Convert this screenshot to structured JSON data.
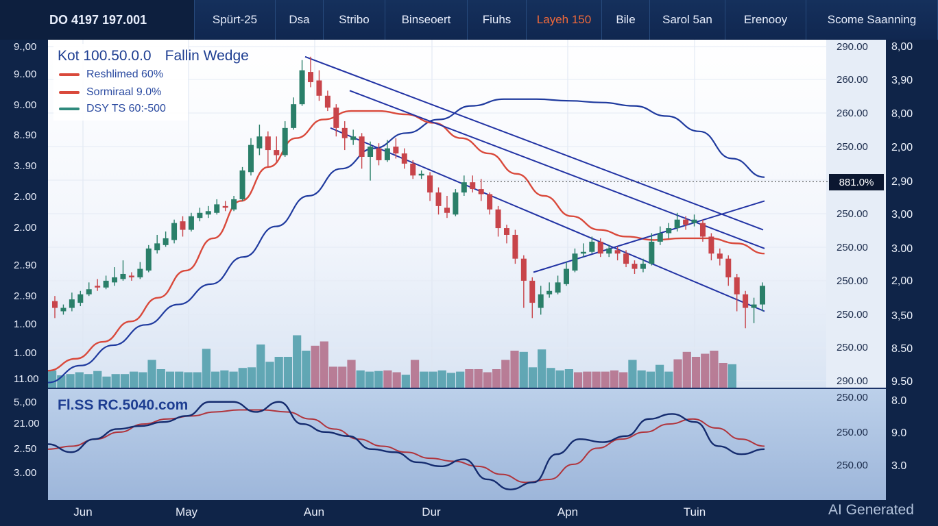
{
  "toolbar": {
    "items": [
      "DO 4197  197.001",
      "Spürt-25",
      "Dsa",
      "Stribo",
      "Binseoert",
      "Fiuhs",
      "Layeh 150",
      "Bile",
      "Sarol 5an",
      "Erenooy",
      "Scome Saanning"
    ],
    "active_index": 6
  },
  "main_title": "Kot 100.50.0.0",
  "pattern_label": "Fallin Wedge",
  "legend": [
    {
      "label": "Reshlimed 60%",
      "color": "#d9493b"
    },
    {
      "label": "Sormiraal 9.0%",
      "color": "#d9493b"
    },
    {
      "label": "DSY TS 60:-500",
      "color": "#2f8a7d"
    }
  ],
  "sub_title": "Fl.SS RC.5040.com",
  "price_tag": "881.0%",
  "watermark": "AI Generated",
  "colors": {
    "up": "#2a7f69",
    "down": "#c8444a",
    "ma_red": "#d9493b",
    "ma_blue": "#1f3a9e",
    "trend": "#2233a4",
    "volume_up": "#4b9ba8",
    "volume_down": "#b26a85",
    "osc_dark": "#142b6e",
    "osc_red": "#b0343c"
  },
  "chart_data": {
    "type": "candlestick",
    "title": "Fallin Wedge",
    "left_axis_labels": [
      "9.,00",
      "9..00",
      "9..00",
      "8..90",
      "3..90",
      "2..00",
      "2..00",
      "2..90",
      "2..90",
      "1..00",
      "1..00",
      "11.00"
    ],
    "right_price_labels": [
      "290.00",
      "260.00",
      "260.00",
      "250.00",
      "250.00",
      "250.00",
      "250.00",
      "250.00",
      "250.00",
      "290.00"
    ],
    "far_right_labels": [
      "8,00",
      "3,90",
      "8,00",
      "2,00",
      "2,90",
      "3,00",
      "3.00",
      "2,00",
      "3,50",
      "8.50",
      "9.50"
    ],
    "sub_left_labels": [
      "5.,00",
      "21.00",
      "2..50",
      "3..00"
    ],
    "sub_right_price_labels": [
      "250.00",
      "250.00",
      "250.00"
    ],
    "sub_far_right_labels": [
      "8.0",
      "9.0",
      "3.0"
    ],
    "x_labels": [
      "Jun",
      "May",
      "Aun",
      "Dur",
      "Apn",
      "Tuin"
    ],
    "candles": [
      {
        "o": 0.96,
        "c": 0.92,
        "h": 0.99,
        "l": 0.86
      },
      {
        "o": 0.9,
        "c": 0.92,
        "h": 0.94,
        "l": 0.88
      },
      {
        "o": 0.92,
        "c": 0.97,
        "h": 1.01,
        "l": 0.9
      },
      {
        "o": 0.95,
        "c": 1.0,
        "h": 1.02,
        "l": 0.93
      },
      {
        "o": 1.0,
        "c": 1.03,
        "h": 1.07,
        "l": 0.99
      },
      {
        "o": 1.05,
        "c": 1.04,
        "h": 1.09,
        "l": 1.02
      },
      {
        "o": 1.04,
        "c": 1.08,
        "h": 1.11,
        "l": 1.03
      },
      {
        "o": 1.07,
        "c": 1.1,
        "h": 1.16,
        "l": 1.05
      },
      {
        "o": 1.09,
        "c": 1.12,
        "h": 1.2,
        "l": 1.08
      },
      {
        "o": 1.11,
        "c": 1.1,
        "h": 1.13,
        "l": 1.08
      },
      {
        "o": 1.1,
        "c": 1.15,
        "h": 1.19,
        "l": 1.09
      },
      {
        "o": 1.14,
        "c": 1.27,
        "h": 1.29,
        "l": 1.13
      },
      {
        "o": 1.26,
        "c": 1.3,
        "h": 1.35,
        "l": 1.24
      },
      {
        "o": 1.29,
        "c": 1.33,
        "h": 1.37,
        "l": 1.28
      },
      {
        "o": 1.32,
        "c": 1.42,
        "h": 1.44,
        "l": 1.3
      },
      {
        "o": 1.43,
        "c": 1.38,
        "h": 1.46,
        "l": 1.34
      },
      {
        "o": 1.38,
        "c": 1.46,
        "h": 1.48,
        "l": 1.37
      },
      {
        "o": 1.45,
        "c": 1.48,
        "h": 1.51,
        "l": 1.43
      },
      {
        "o": 1.47,
        "c": 1.49,
        "h": 1.52,
        "l": 1.45
      },
      {
        "o": 1.48,
        "c": 1.53,
        "h": 1.56,
        "l": 1.47
      },
      {
        "o": 1.52,
        "c": 1.51,
        "h": 1.55,
        "l": 1.49
      },
      {
        "o": 1.5,
        "c": 1.56,
        "h": 1.58,
        "l": 1.49
      },
      {
        "o": 1.56,
        "c": 1.73,
        "h": 1.75,
        "l": 1.55
      },
      {
        "o": 1.72,
        "c": 1.88,
        "h": 1.92,
        "l": 1.7
      },
      {
        "o": 1.86,
        "c": 1.93,
        "h": 2.0,
        "l": 1.82
      },
      {
        "o": 1.93,
        "c": 1.85,
        "h": 1.96,
        "l": 1.75
      },
      {
        "o": 1.85,
        "c": 1.82,
        "h": 1.93,
        "l": 1.78
      },
      {
        "o": 1.82,
        "c": 1.98,
        "h": 2.02,
        "l": 1.81
      },
      {
        "o": 1.98,
        "c": 2.12,
        "h": 2.16,
        "l": 1.97
      },
      {
        "o": 2.12,
        "c": 2.32,
        "h": 2.38,
        "l": 2.11
      },
      {
        "o": 2.31,
        "c": 2.25,
        "h": 2.4,
        "l": 2.22
      },
      {
        "o": 2.26,
        "c": 2.17,
        "h": 2.32,
        "l": 2.14
      },
      {
        "o": 2.17,
        "c": 2.1,
        "h": 2.2,
        "l": 2.08
      },
      {
        "o": 2.1,
        "c": 1.98,
        "h": 2.12,
        "l": 1.93
      },
      {
        "o": 1.98,
        "c": 1.92,
        "h": 2.02,
        "l": 1.85
      },
      {
        "o": 1.91,
        "c": 1.93,
        "h": 1.97,
        "l": 1.88
      },
      {
        "o": 1.93,
        "c": 1.81,
        "h": 1.95,
        "l": 1.74
      },
      {
        "o": 1.81,
        "c": 1.87,
        "h": 1.9,
        "l": 1.67
      },
      {
        "o": 1.86,
        "c": 1.79,
        "h": 1.89,
        "l": 1.76
      },
      {
        "o": 1.79,
        "c": 1.86,
        "h": 1.91,
        "l": 1.78
      },
      {
        "o": 1.87,
        "c": 1.83,
        "h": 1.92,
        "l": 1.8
      },
      {
        "o": 1.83,
        "c": 1.77,
        "h": 1.86,
        "l": 1.74
      },
      {
        "o": 1.77,
        "c": 1.7,
        "h": 1.79,
        "l": 1.68
      },
      {
        "o": 1.7,
        "c": 1.71,
        "h": 1.73,
        "l": 1.68
      },
      {
        "o": 1.7,
        "c": 1.6,
        "h": 1.72,
        "l": 1.55
      },
      {
        "o": 1.6,
        "c": 1.52,
        "h": 1.63,
        "l": 1.47
      },
      {
        "o": 1.51,
        "c": 1.48,
        "h": 1.58,
        "l": 1.45
      },
      {
        "o": 1.47,
        "c": 1.6,
        "h": 1.62,
        "l": 1.46
      },
      {
        "o": 1.6,
        "c": 1.66,
        "h": 1.7,
        "l": 1.58
      },
      {
        "o": 1.66,
        "c": 1.62,
        "h": 1.7,
        "l": 1.6
      },
      {
        "o": 1.62,
        "c": 1.59,
        "h": 1.68,
        "l": 1.55
      },
      {
        "o": 1.59,
        "c": 1.5,
        "h": 1.6,
        "l": 1.47
      },
      {
        "o": 1.5,
        "c": 1.39,
        "h": 1.52,
        "l": 1.34
      },
      {
        "o": 1.39,
        "c": 1.35,
        "h": 1.41,
        "l": 1.3
      },
      {
        "o": 1.35,
        "c": 1.21,
        "h": 1.38,
        "l": 1.18
      },
      {
        "o": 1.21,
        "c": 1.08,
        "h": 1.23,
        "l": 0.92
      },
      {
        "o": 1.08,
        "c": 0.95,
        "h": 1.1,
        "l": 0.86
      },
      {
        "o": 0.92,
        "c": 1.0,
        "h": 1.05,
        "l": 0.88
      },
      {
        "o": 1.0,
        "c": 1.02,
        "h": 1.07,
        "l": 0.98
      },
      {
        "o": 1.01,
        "c": 1.07,
        "h": 1.11,
        "l": 1.0
      },
      {
        "o": 1.06,
        "c": 1.15,
        "h": 1.19,
        "l": 1.05
      },
      {
        "o": 1.14,
        "c": 1.24,
        "h": 1.27,
        "l": 1.13
      },
      {
        "o": 1.24,
        "c": 1.25,
        "h": 1.3,
        "l": 1.22
      },
      {
        "o": 1.25,
        "c": 1.31,
        "h": 1.34,
        "l": 1.24
      },
      {
        "o": 1.31,
        "c": 1.24,
        "h": 1.33,
        "l": 1.22
      },
      {
        "o": 1.24,
        "c": 1.27,
        "h": 1.29,
        "l": 1.22
      },
      {
        "o": 1.26,
        "c": 1.24,
        "h": 1.28,
        "l": 1.2
      },
      {
        "o": 1.24,
        "c": 1.18,
        "h": 1.26,
        "l": 1.16
      },
      {
        "o": 1.18,
        "c": 1.15,
        "h": 1.2,
        "l": 1.12
      },
      {
        "o": 1.15,
        "c": 1.18,
        "h": 1.21,
        "l": 1.13
      },
      {
        "o": 1.18,
        "c": 1.31,
        "h": 1.36,
        "l": 1.17
      },
      {
        "o": 1.31,
        "c": 1.36,
        "h": 1.4,
        "l": 1.29
      },
      {
        "o": 1.36,
        "c": 1.39,
        "h": 1.42,
        "l": 1.33
      },
      {
        "o": 1.39,
        "c": 1.44,
        "h": 1.48,
        "l": 1.37
      },
      {
        "o": 1.44,
        "c": 1.41,
        "h": 1.46,
        "l": 1.38
      },
      {
        "o": 1.42,
        "c": 1.44,
        "h": 1.47,
        "l": 1.4
      },
      {
        "o": 1.42,
        "c": 1.34,
        "h": 1.44,
        "l": 1.31
      },
      {
        "o": 1.34,
        "c": 1.24,
        "h": 1.36,
        "l": 1.2
      },
      {
        "o": 1.24,
        "c": 1.21,
        "h": 1.27,
        "l": 1.17
      },
      {
        "o": 1.21,
        "c": 1.1,
        "h": 1.23,
        "l": 1.05
      },
      {
        "o": 1.1,
        "c": 1.0,
        "h": 1.12,
        "l": 0.9
      },
      {
        "o": 1.0,
        "c": 0.92,
        "h": 1.02,
        "l": 0.8
      },
      {
        "o": 0.92,
        "c": 0.94,
        "h": 0.98,
        "l": 0.83
      },
      {
        "o": 0.94,
        "c": 1.05,
        "h": 1.07,
        "l": 0.9
      }
    ],
    "volume": [
      {
        "v": 0.28,
        "up": true
      },
      {
        "v": 0.2,
        "up": true
      },
      {
        "v": 0.22,
        "up": true
      },
      {
        "v": 0.25,
        "up": true
      },
      {
        "v": 0.22,
        "up": true
      },
      {
        "v": 0.27,
        "up": true
      },
      {
        "v": 0.18,
        "up": true
      },
      {
        "v": 0.22,
        "up": true
      },
      {
        "v": 0.22,
        "up": true
      },
      {
        "v": 0.26,
        "up": true
      },
      {
        "v": 0.25,
        "up": true
      },
      {
        "v": 0.45,
        "up": true
      },
      {
        "v": 0.3,
        "up": true
      },
      {
        "v": 0.26,
        "up": true
      },
      {
        "v": 0.26,
        "up": true
      },
      {
        "v": 0.25,
        "up": true
      },
      {
        "v": 0.25,
        "up": true
      },
      {
        "v": 0.63,
        "up": true
      },
      {
        "v": 0.26,
        "up": true
      },
      {
        "v": 0.28,
        "up": true
      },
      {
        "v": 0.26,
        "up": true
      },
      {
        "v": 0.32,
        "up": true
      },
      {
        "v": 0.33,
        "up": true
      },
      {
        "v": 0.7,
        "up": true
      },
      {
        "v": 0.42,
        "up": true
      },
      {
        "v": 0.5,
        "up": true
      },
      {
        "v": 0.5,
        "up": true
      },
      {
        "v": 0.85,
        "up": true
      },
      {
        "v": 0.6,
        "up": true
      },
      {
        "v": 0.68,
        "up": false
      },
      {
        "v": 0.75,
        "up": false
      },
      {
        "v": 0.34,
        "up": false
      },
      {
        "v": 0.34,
        "up": false
      },
      {
        "v": 0.45,
        "up": false
      },
      {
        "v": 0.28,
        "up": true
      },
      {
        "v": 0.26,
        "up": true
      },
      {
        "v": 0.27,
        "up": true
      },
      {
        "v": 0.28,
        "up": false
      },
      {
        "v": 0.25,
        "up": false
      },
      {
        "v": 0.21,
        "up": true
      },
      {
        "v": 0.45,
        "up": false
      },
      {
        "v": 0.26,
        "up": true
      },
      {
        "v": 0.26,
        "up": true
      },
      {
        "v": 0.28,
        "up": true
      },
      {
        "v": 0.24,
        "up": true
      },
      {
        "v": 0.26,
        "up": true
      },
      {
        "v": 0.3,
        "up": false
      },
      {
        "v": 0.3,
        "up": false
      },
      {
        "v": 0.25,
        "up": false
      },
      {
        "v": 0.3,
        "up": false
      },
      {
        "v": 0.45,
        "up": false
      },
      {
        "v": 0.6,
        "up": false
      },
      {
        "v": 0.58,
        "up": true
      },
      {
        "v": 0.33,
        "up": true
      },
      {
        "v": 0.62,
        "up": true
      },
      {
        "v": 0.32,
        "up": true
      },
      {
        "v": 0.28,
        "up": true
      },
      {
        "v": 0.3,
        "up": true
      },
      {
        "v": 0.25,
        "up": false
      },
      {
        "v": 0.26,
        "up": false
      },
      {
        "v": 0.26,
        "up": false
      },
      {
        "v": 0.26,
        "up": false
      },
      {
        "v": 0.28,
        "up": false
      },
      {
        "v": 0.25,
        "up": false
      },
      {
        "v": 0.45,
        "up": true
      },
      {
        "v": 0.28,
        "up": true
      },
      {
        "v": 0.26,
        "up": true
      },
      {
        "v": 0.37,
        "up": true
      },
      {
        "v": 0.26,
        "up": true
      },
      {
        "v": 0.46,
        "up": false
      },
      {
        "v": 0.58,
        "up": false
      },
      {
        "v": 0.5,
        "up": false
      },
      {
        "v": 0.55,
        "up": false
      },
      {
        "v": 0.6,
        "up": false
      },
      {
        "v": 0.4,
        "up": false
      },
      {
        "v": 0.38,
        "up": true
      }
    ],
    "ma_red": [
      0.55,
      0.62,
      0.72,
      0.84,
      0.98,
      1.14,
      1.33,
      1.55,
      1.75,
      1.92,
      2.03,
      2.08,
      2.08,
      2.06,
      2.01,
      1.92,
      1.83,
      1.71,
      1.58,
      1.46,
      1.38,
      1.34,
      1.32,
      1.33,
      1.33,
      1.3,
      1.24
    ],
    "ma_blue": [
      0.48,
      0.58,
      0.7,
      0.82,
      0.94,
      1.06,
      1.22,
      1.4,
      1.58,
      1.74,
      1.86,
      1.95,
      2.03,
      2.11,
      2.15,
      2.15,
      2.14,
      2.13,
      2.11,
      2.05,
      1.96,
      1.8,
      1.69
    ],
    "oscillator_dark": [
      0.5,
      0.42,
      0.55,
      0.65,
      0.68,
      0.72,
      0.78,
      0.92,
      0.92,
      0.82,
      0.92,
      0.7,
      0.62,
      0.58,
      0.45,
      0.42,
      0.32,
      0.28,
      0.35,
      0.15,
      0.05,
      0.12,
      0.4,
      0.55,
      0.52,
      0.58,
      0.75,
      0.8,
      0.72,
      0.48,
      0.4,
      0.45
    ],
    "oscillator_red": [
      0.45,
      0.48,
      0.55,
      0.62,
      0.7,
      0.75,
      0.78,
      0.82,
      0.84,
      0.84,
      0.82,
      0.75,
      0.65,
      0.55,
      0.48,
      0.42,
      0.36,
      0.33,
      0.28,
      0.2,
      0.12,
      0.15,
      0.3,
      0.46,
      0.55,
      0.62,
      0.7,
      0.75,
      0.66,
      0.55,
      0.48
    ]
  }
}
